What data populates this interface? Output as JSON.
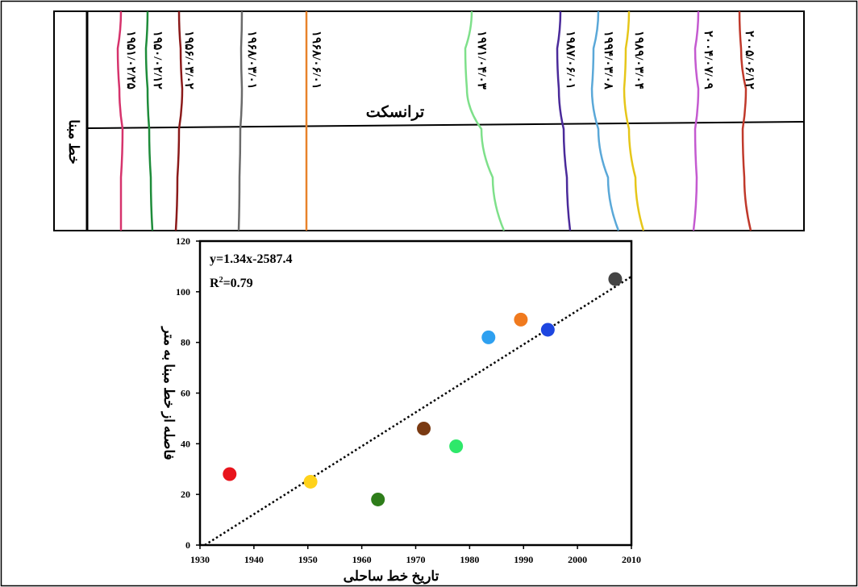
{
  "shoreline_panel": {
    "baseline_label": "خط مبنا",
    "transect_label": "ترانسکت",
    "shorelines": [
      {
        "date": "۱۹۵۱/۰۲/۲۵",
        "color": "#d6336c"
      },
      {
        "date": "۱۹۵۰/۰۲/۱۲",
        "color": "#1e8c3a"
      },
      {
        "date": "۱۹۵۶/۰۳/۰۲",
        "color": "#8b1a1a"
      },
      {
        "date": "۱۹۶۸/۰۳/۰۱",
        "color": "#6b6b6b"
      },
      {
        "date": "۱۹۶۸/۰۶/۰۱",
        "color": "#e8822a"
      },
      {
        "date": "۱۹۷۱/۰۴/۰۳",
        "color": "#7ee08a"
      },
      {
        "date": "۱۹۸۷/۰۶/۰۱",
        "color": "#4a2a9a"
      },
      {
        "date": "۱۹۹۴/۰۳/۰۸",
        "color": "#5aa8d8"
      },
      {
        "date": "۱۹۸۹/۰۳/۰۴",
        "color": "#e6c619"
      },
      {
        "date": "۲۰۰۴/۰۷/۰۹",
        "color": "#c45ad0"
      },
      {
        "date": "۲۰۰۵/۰۶/۱۲",
        "color": "#c0392b"
      }
    ]
  },
  "chart_data": {
    "type": "scatter",
    "xlabel": "تاریخ خط ساحلی",
    "ylabel": "فاصله از خط مبنا به متر",
    "xlim": [
      1930,
      2010
    ],
    "ylim": [
      0,
      120
    ],
    "xticks": [
      1930,
      1940,
      1950,
      1960,
      1970,
      1980,
      1990,
      2000,
      2010
    ],
    "yticks": [
      0,
      20,
      40,
      60,
      80,
      100,
      120
    ],
    "equation": "y=1.34x-2587.4",
    "r2_label": "R",
    "r2_sup": "2",
    "r2_value": "=0.79",
    "trendline": {
      "slope": 1.34,
      "intercept": -2587.4,
      "style": "dotted"
    },
    "points": [
      {
        "x": 1935.5,
        "y": 28,
        "color": "#e8141c"
      },
      {
        "x": 1950.5,
        "y": 25,
        "color": "#ffd21a"
      },
      {
        "x": 1963,
        "y": 18,
        "color": "#2e7d1a"
      },
      {
        "x": 1971.5,
        "y": 46,
        "color": "#7a3a12"
      },
      {
        "x": 1977.5,
        "y": 39,
        "color": "#2ee86a"
      },
      {
        "x": 1983.5,
        "y": 82,
        "color": "#2ea0f0"
      },
      {
        "x": 1989.5,
        "y": 89,
        "color": "#f07a1e"
      },
      {
        "x": 1994.5,
        "y": 85,
        "color": "#1e46e0"
      },
      {
        "x": 2007,
        "y": 105,
        "color": "#444444"
      }
    ]
  }
}
